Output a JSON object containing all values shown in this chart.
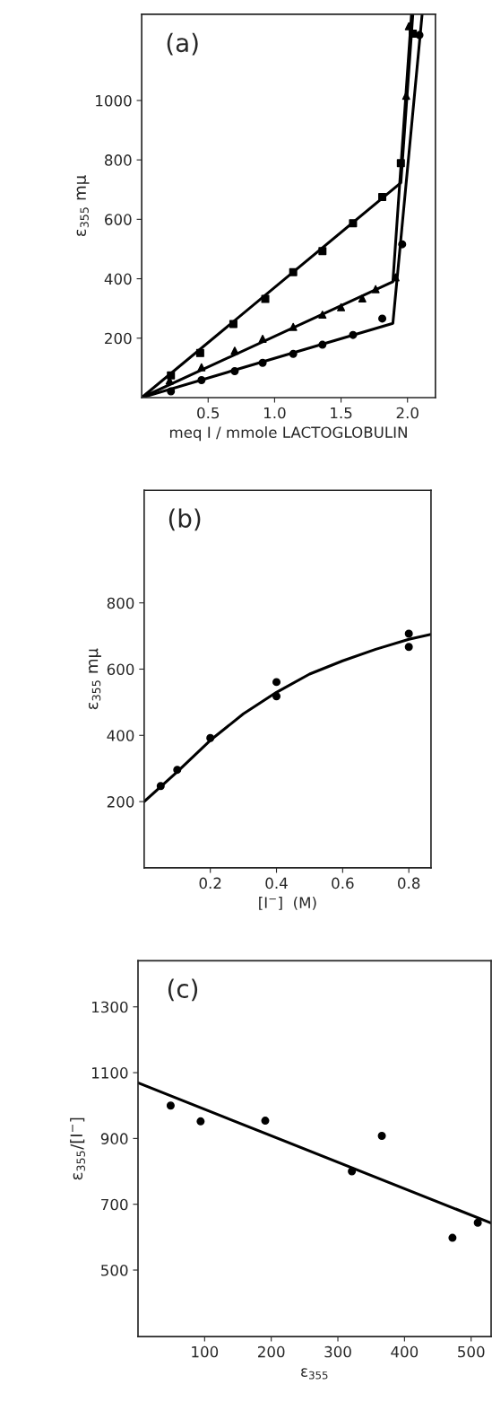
{
  "chart_data": [
    {
      "type": "scatter",
      "xlabel": "meq I / mmole LACTOGLOBULIN",
      "ylabel": "ε$_{355}$ mμ",
      "annotations": [
        "(a)"
      ],
      "xlim": [
        0,
        2.21
      ],
      "ylim": [
        0,
        1290
      ],
      "xticks": [
        0.5,
        {
          "value": 1.0,
          "label": "1.0"
        },
        1.5,
        {
          "value": 2.0,
          "label": "2.0"
        }
      ],
      "yticks": [
        200,
        400,
        600,
        800,
        1000
      ],
      "grid": false,
      "legend": false,
      "series": [
        {
          "marker": "square",
          "color": "#000000",
          "x": [
            0.22,
            0.44,
            0.69,
            0.93,
            1.14,
            1.36,
            1.59,
            1.81,
            1.95,
            2.04
          ],
          "values": [
            75,
            150,
            248,
            332,
            422,
            493,
            587,
            675,
            789,
            1225
          ]
        },
        {
          "marker": "triangle",
          "color": "#000000",
          "x": [
            0.21,
            0.45,
            0.7,
            0.91,
            1.14,
            1.36,
            1.5,
            1.66,
            1.76,
            1.91,
            1.99,
            2.01
          ],
          "values": [
            57,
            102,
            158,
            198,
            238,
            279,
            304,
            334,
            365,
            405,
            1016,
            1250
          ]
        },
        {
          "marker": "circle",
          "color": "#000000",
          "x": [
            0.22,
            0.45,
            0.7,
            0.91,
            1.14,
            1.36,
            1.59,
            1.81,
            1.96,
            2.09
          ],
          "values": [
            21,
            59,
            89,
            117,
            147,
            178,
            211,
            266,
            516,
            1220
          ]
        },
        {
          "type": "line",
          "marker": "none",
          "line_style": "solid",
          "color": "#000000",
          "x": [
            0,
            1.95,
            2.04
          ],
          "values": [
            0,
            723,
            1290
          ]
        },
        {
          "type": "line",
          "marker": "none",
          "line_style": "solid",
          "color": "#000000",
          "x": [
            0,
            1.89,
            2.03
          ],
          "values": [
            0,
            390,
            1290
          ]
        },
        {
          "type": "line",
          "marker": "none",
          "line_style": "solid",
          "color": "#000000",
          "x": [
            0,
            1.89,
            2.11
          ],
          "values": [
            0,
            250,
            1290
          ]
        }
      ]
    },
    {
      "type": "scatter",
      "xlabel": "[I$^{−}$]  (M)",
      "ylabel": "ε$_{355}$ mμ",
      "annotations": [
        "(b)"
      ],
      "xlim": [
        0,
        0.867
      ],
      "ylim": [
        0,
        1140
      ],
      "xticks": [
        0.2,
        0.4,
        0.6,
        0.8
      ],
      "yticks": [
        200,
        400,
        600,
        800
      ],
      "grid": false,
      "legend": false,
      "series": [
        {
          "marker": "circle",
          "color": "#000000",
          "x": [
            0.05,
            0.1,
            0.2,
            0.4,
            0.4,
            0.8,
            0.8
          ],
          "values": [
            247,
            296,
            392,
            561,
            518,
            707,
            667
          ]
        },
        {
          "type": "line",
          "marker": "none",
          "line_style": "solid",
          "color": "#000000",
          "x": [
            0,
            0.1,
            0.2,
            0.3,
            0.4,
            0.5,
            0.6,
            0.7,
            0.8,
            0.867
          ],
          "values": [
            200,
            290,
            385,
            465,
            530,
            585,
            625,
            660,
            690,
            705
          ]
        }
      ]
    },
    {
      "type": "scatter",
      "xlabel": "ε$_{355}$",
      "ylabel": "ε$_{355}$/[I$^{−}$]",
      "annotations": [
        "(c)"
      ],
      "xlim": [
        0,
        530
      ],
      "ylim": [
        298,
        1440
      ],
      "xticks": [
        100,
        200,
        300,
        400,
        500
      ],
      "yticks": [
        500,
        700,
        900,
        1100,
        1300
      ],
      "grid": false,
      "legend": false,
      "series": [
        {
          "marker": "circle",
          "color": "#000000",
          "x": [
            49,
            94,
            191,
            321,
            366,
            472,
            510
          ],
          "values": [
            1000,
            952,
            954,
            800,
            908,
            598,
            644
          ]
        },
        {
          "type": "line",
          "marker": "none",
          "line_style": "solid",
          "color": "#000000",
          "x": [
            0,
            530
          ],
          "values": [
            1069,
            643
          ]
        }
      ]
    }
  ]
}
